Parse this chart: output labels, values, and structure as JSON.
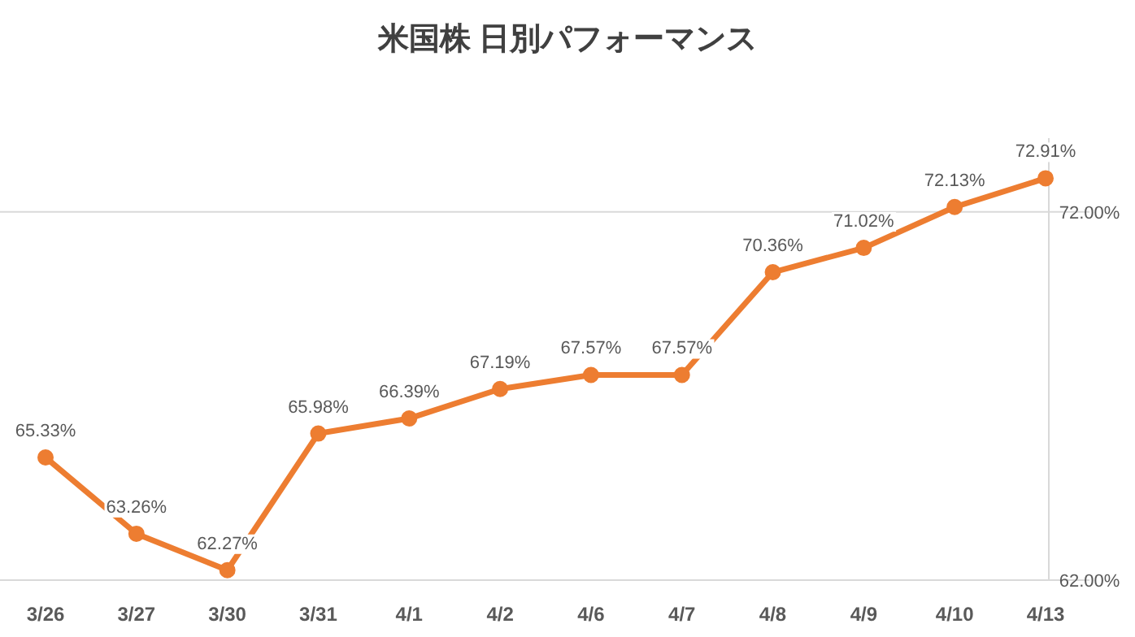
{
  "chart_data": {
    "type": "line",
    "title": "米国株 日別パフォーマンス",
    "categories": [
      "3/26",
      "3/27",
      "3/30",
      "3/31",
      "4/1",
      "4/2",
      "4/6",
      "4/7",
      "4/8",
      "4/9",
      "4/10",
      "4/13"
    ],
    "series": [
      {
        "color": "#ed7d31",
        "values": [
          65.33,
          63.26,
          62.27,
          65.98,
          66.39,
          67.19,
          67.57,
          67.57,
          70.36,
          71.02,
          72.13,
          72.91
        ],
        "value_labels": [
          "65.33%",
          "63.26%",
          "62.27%",
          "65.98%",
          "66.39%",
          "67.19%",
          "67.57%",
          "67.57%",
          "70.36%",
          "71.02%",
          "72.13%",
          "72.91%"
        ]
      }
    ],
    "ylim": [
      62,
      74
    ],
    "yticks": [
      {
        "value": 62,
        "label": "62.00%"
      },
      {
        "value": 72,
        "label": "72.00%"
      }
    ],
    "grid": "y",
    "marker": "circle",
    "line_style": "solid"
  }
}
